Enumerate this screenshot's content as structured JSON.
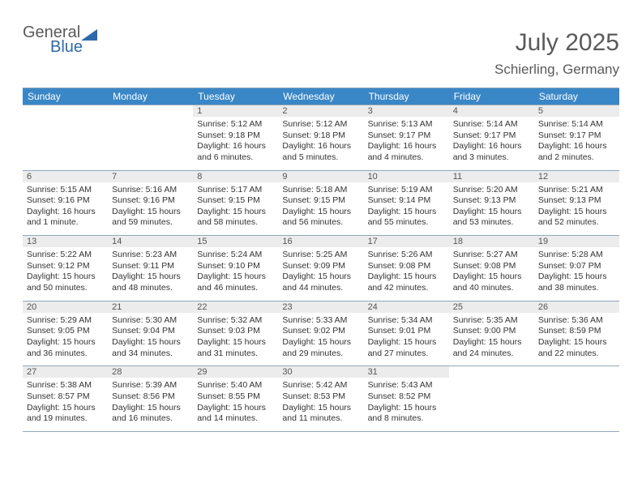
{
  "logo": {
    "part1": "General",
    "part2": "Blue",
    "triangle_color": "#2d6aa8"
  },
  "header": {
    "month": "July 2025",
    "location": "Schierling, Germany"
  },
  "colors": {
    "header_bg": "#3a87c7",
    "daynum_bg": "#ececec",
    "rule": "#94a7b8",
    "text": "#5a5a5a"
  },
  "day_names": [
    "Sunday",
    "Monday",
    "Tuesday",
    "Wednesday",
    "Thursday",
    "Friday",
    "Saturday"
  ],
  "weeks": [
    [
      {
        "blank": true
      },
      {
        "blank": true
      },
      {
        "n": "1",
        "sunrise": "Sunrise: 5:12 AM",
        "sunset": "Sunset: 9:18 PM",
        "daylight": "Daylight: 16 hours and 6 minutes."
      },
      {
        "n": "2",
        "sunrise": "Sunrise: 5:12 AM",
        "sunset": "Sunset: 9:18 PM",
        "daylight": "Daylight: 16 hours and 5 minutes."
      },
      {
        "n": "3",
        "sunrise": "Sunrise: 5:13 AM",
        "sunset": "Sunset: 9:17 PM",
        "daylight": "Daylight: 16 hours and 4 minutes."
      },
      {
        "n": "4",
        "sunrise": "Sunrise: 5:14 AM",
        "sunset": "Sunset: 9:17 PM",
        "daylight": "Daylight: 16 hours and 3 minutes."
      },
      {
        "n": "5",
        "sunrise": "Sunrise: 5:14 AM",
        "sunset": "Sunset: 9:17 PM",
        "daylight": "Daylight: 16 hours and 2 minutes."
      }
    ],
    [
      {
        "n": "6",
        "sunrise": "Sunrise: 5:15 AM",
        "sunset": "Sunset: 9:16 PM",
        "daylight": "Daylight: 16 hours and 1 minute."
      },
      {
        "n": "7",
        "sunrise": "Sunrise: 5:16 AM",
        "sunset": "Sunset: 9:16 PM",
        "daylight": "Daylight: 15 hours and 59 minutes."
      },
      {
        "n": "8",
        "sunrise": "Sunrise: 5:17 AM",
        "sunset": "Sunset: 9:15 PM",
        "daylight": "Daylight: 15 hours and 58 minutes."
      },
      {
        "n": "9",
        "sunrise": "Sunrise: 5:18 AM",
        "sunset": "Sunset: 9:15 PM",
        "daylight": "Daylight: 15 hours and 56 minutes."
      },
      {
        "n": "10",
        "sunrise": "Sunrise: 5:19 AM",
        "sunset": "Sunset: 9:14 PM",
        "daylight": "Daylight: 15 hours and 55 minutes."
      },
      {
        "n": "11",
        "sunrise": "Sunrise: 5:20 AM",
        "sunset": "Sunset: 9:13 PM",
        "daylight": "Daylight: 15 hours and 53 minutes."
      },
      {
        "n": "12",
        "sunrise": "Sunrise: 5:21 AM",
        "sunset": "Sunset: 9:13 PM",
        "daylight": "Daylight: 15 hours and 52 minutes."
      }
    ],
    [
      {
        "n": "13",
        "sunrise": "Sunrise: 5:22 AM",
        "sunset": "Sunset: 9:12 PM",
        "daylight": "Daylight: 15 hours and 50 minutes."
      },
      {
        "n": "14",
        "sunrise": "Sunrise: 5:23 AM",
        "sunset": "Sunset: 9:11 PM",
        "daylight": "Daylight: 15 hours and 48 minutes."
      },
      {
        "n": "15",
        "sunrise": "Sunrise: 5:24 AM",
        "sunset": "Sunset: 9:10 PM",
        "daylight": "Daylight: 15 hours and 46 minutes."
      },
      {
        "n": "16",
        "sunrise": "Sunrise: 5:25 AM",
        "sunset": "Sunset: 9:09 PM",
        "daylight": "Daylight: 15 hours and 44 minutes."
      },
      {
        "n": "17",
        "sunrise": "Sunrise: 5:26 AM",
        "sunset": "Sunset: 9:08 PM",
        "daylight": "Daylight: 15 hours and 42 minutes."
      },
      {
        "n": "18",
        "sunrise": "Sunrise: 5:27 AM",
        "sunset": "Sunset: 9:08 PM",
        "daylight": "Daylight: 15 hours and 40 minutes."
      },
      {
        "n": "19",
        "sunrise": "Sunrise: 5:28 AM",
        "sunset": "Sunset: 9:07 PM",
        "daylight": "Daylight: 15 hours and 38 minutes."
      }
    ],
    [
      {
        "n": "20",
        "sunrise": "Sunrise: 5:29 AM",
        "sunset": "Sunset: 9:05 PM",
        "daylight": "Daylight: 15 hours and 36 minutes."
      },
      {
        "n": "21",
        "sunrise": "Sunrise: 5:30 AM",
        "sunset": "Sunset: 9:04 PM",
        "daylight": "Daylight: 15 hours and 34 minutes."
      },
      {
        "n": "22",
        "sunrise": "Sunrise: 5:32 AM",
        "sunset": "Sunset: 9:03 PM",
        "daylight": "Daylight: 15 hours and 31 minutes."
      },
      {
        "n": "23",
        "sunrise": "Sunrise: 5:33 AM",
        "sunset": "Sunset: 9:02 PM",
        "daylight": "Daylight: 15 hours and 29 minutes."
      },
      {
        "n": "24",
        "sunrise": "Sunrise: 5:34 AM",
        "sunset": "Sunset: 9:01 PM",
        "daylight": "Daylight: 15 hours and 27 minutes."
      },
      {
        "n": "25",
        "sunrise": "Sunrise: 5:35 AM",
        "sunset": "Sunset: 9:00 PM",
        "daylight": "Daylight: 15 hours and 24 minutes."
      },
      {
        "n": "26",
        "sunrise": "Sunrise: 5:36 AM",
        "sunset": "Sunset: 8:59 PM",
        "daylight": "Daylight: 15 hours and 22 minutes."
      }
    ],
    [
      {
        "n": "27",
        "sunrise": "Sunrise: 5:38 AM",
        "sunset": "Sunset: 8:57 PM",
        "daylight": "Daylight: 15 hours and 19 minutes."
      },
      {
        "n": "28",
        "sunrise": "Sunrise: 5:39 AM",
        "sunset": "Sunset: 8:56 PM",
        "daylight": "Daylight: 15 hours and 16 minutes."
      },
      {
        "n": "29",
        "sunrise": "Sunrise: 5:40 AM",
        "sunset": "Sunset: 8:55 PM",
        "daylight": "Daylight: 15 hours and 14 minutes."
      },
      {
        "n": "30",
        "sunrise": "Sunrise: 5:42 AM",
        "sunset": "Sunset: 8:53 PM",
        "daylight": "Daylight: 15 hours and 11 minutes."
      },
      {
        "n": "31",
        "sunrise": "Sunrise: 5:43 AM",
        "sunset": "Sunset: 8:52 PM",
        "daylight": "Daylight: 15 hours and 8 minutes."
      },
      {
        "blank": true
      },
      {
        "blank": true
      }
    ]
  ]
}
